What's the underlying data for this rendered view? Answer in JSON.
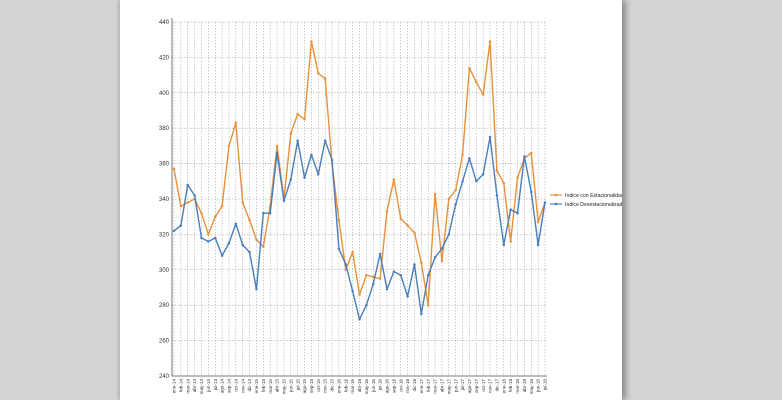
{
  "chart_data": {
    "type": "line",
    "title": "",
    "xlabel": "",
    "ylabel": "",
    "ylim": [
      240,
      440
    ],
    "yticks": [
      240,
      260,
      280,
      300,
      320,
      340,
      360,
      380,
      400,
      420,
      440
    ],
    "grid": {
      "horizontal": true,
      "vertical": true
    },
    "legend_position": "right",
    "categories": [
      "ene-14",
      "feb-14",
      "mar-14",
      "abr-14",
      "may-14",
      "jun-14",
      "jul-14",
      "ago-14",
      "sep-14",
      "oct-14",
      "nov-14",
      "dic-14",
      "ene-15",
      "feb-15",
      "mar-15",
      "abr-15",
      "may-15",
      "jun-15",
      "jul-15",
      "ago-15",
      "sep-15",
      "oct-15",
      "nov-15",
      "dic-15",
      "ene-16",
      "feb-16",
      "mar-16",
      "abr-16",
      "may-16",
      "jun-16",
      "jul-16",
      "ago-16",
      "sep-16",
      "oct-16",
      "nov-16",
      "dic-16",
      "ene-17",
      "feb-17",
      "mar-17",
      "abr-17",
      "may-17",
      "jun-17",
      "jul-17",
      "ago-17",
      "sep-17",
      "oct-17",
      "nov-17",
      "dic-17",
      "ene-18",
      "feb-18",
      "mar-18",
      "abr-18",
      "may-18",
      "jun-18",
      "jul-18"
    ],
    "series": [
      {
        "name": "Indice con Estacionalidad",
        "color": "#e8913a",
        "values": [
          357,
          336,
          338,
          340,
          332,
          320,
          330,
          336,
          370,
          383,
          338,
          328,
          317,
          313,
          336,
          370,
          340,
          377,
          388,
          385,
          429,
          411,
          408,
          360,
          328,
          300,
          310,
          286,
          297,
          296,
          295,
          333,
          351,
          329,
          325,
          321,
          304,
          280,
          343,
          305,
          340,
          345,
          365,
          414,
          406,
          399,
          429,
          356,
          349,
          316,
          352,
          363,
          366,
          327,
          338
        ]
      },
      {
        "name": "Indice Desestacionalizado",
        "color": "#4a7eba",
        "values": [
          322,
          325,
          348,
          342,
          318,
          316,
          318,
          308,
          315,
          326,
          314,
          310,
          289,
          332,
          332,
          366,
          339,
          351,
          373,
          352,
          365,
          354,
          373,
          362,
          312,
          303,
          288,
          272,
          280,
          292,
          309,
          289,
          299,
          297,
          285,
          303,
          275,
          297,
          307,
          312,
          320,
          337,
          350,
          363,
          350,
          354,
          375,
          342,
          314,
          334,
          332,
          364,
          344,
          314,
          338
        ]
      }
    ]
  }
}
